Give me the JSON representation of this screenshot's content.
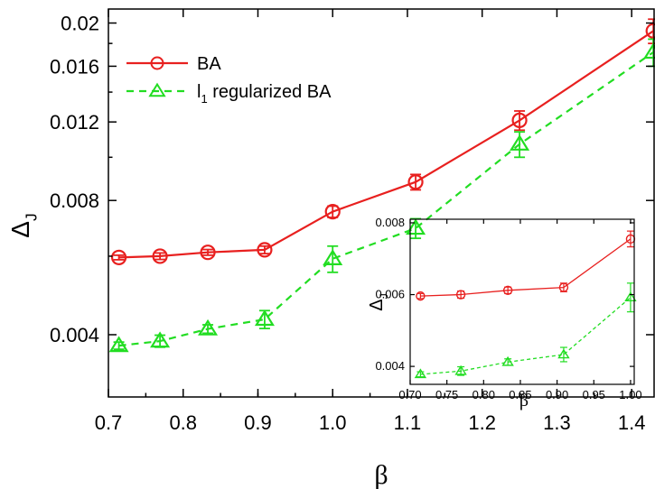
{
  "chart_data": [
    {
      "type": "line",
      "xlabel": "β",
      "ylabel": "Δ",
      "ylabel_subscript": "J",
      "y_scale": "log",
      "xlim": [
        0.7,
        1.43
      ],
      "ylim": [
        0.0029,
        0.0215
      ],
      "x_ticks": [
        0.7,
        0.8,
        0.9,
        1.0,
        1.1,
        1.2,
        1.3,
        1.4
      ],
      "x_tick_labels": [
        "0.7",
        "0.8",
        "0.9",
        "1.0",
        "1.1",
        "1.2",
        "1.3",
        "1.4"
      ],
      "y_ticks": [
        0.004,
        0.008,
        0.012,
        0.016,
        0.02
      ],
      "y_tick_labels": [
        "0.004",
        "0.008",
        "0.012",
        "0.016",
        "0.02"
      ],
      "legend_position": "top-left",
      "grid": false,
      "series": [
        {
          "name": "BA",
          "color": "#e8201f",
          "line_style": "solid",
          "marker": "circle",
          "x": [
            0.714,
            0.769,
            0.833,
            0.909,
            1.0,
            1.111,
            1.25,
            1.429
          ],
          "y": [
            0.00596,
            0.006,
            0.00612,
            0.0062,
            0.00755,
            0.0088,
            0.0121,
            0.0192
          ],
          "err": [
            7e-05,
            0.0001,
            9e-05,
            0.00012,
            0.00022,
            0.00035,
            0.0006,
            0.0012
          ]
        },
        {
          "name": "l",
          "name_subscript": "1",
          "name_suffix": " regularized BA",
          "color": "#22dd22",
          "line_style": "dashed",
          "marker": "triangle",
          "x": [
            0.714,
            0.769,
            0.833,
            0.909,
            1.0,
            1.111,
            1.25,
            1.429
          ],
          "y": [
            0.00378,
            0.00387,
            0.00412,
            0.00433,
            0.00592,
            0.00693,
            0.0107,
            0.0172
          ],
          "err": [
            7e-05,
            0.00012,
            9e-05,
            0.0002,
            0.0004,
            0.00035,
            0.0007,
            0.0012
          ]
        }
      ]
    },
    {
      "type": "line",
      "xlabel": "β",
      "ylabel": "Δ",
      "ylabel_subscript": "J",
      "y_scale": "linear",
      "xlim": [
        0.7,
        1.005
      ],
      "ylim": [
        0.0035,
        0.0081
      ],
      "x_ticks": [
        0.7,
        0.75,
        0.8,
        0.85,
        0.9,
        0.95,
        1.0
      ],
      "x_tick_labels": [
        "0.70",
        "0.75",
        "0.80",
        "0.85",
        "0.90",
        "0.95",
        "1.00"
      ],
      "y_ticks": [
        0.004,
        0.006,
        0.008
      ],
      "y_tick_labels": [
        "0.004",
        "0.006",
        "0.008"
      ],
      "grid": false,
      "series": [
        {
          "color": "#e8201f",
          "line_style": "solid",
          "marker": "circle",
          "x": [
            0.714,
            0.769,
            0.833,
            0.909,
            1.0
          ],
          "y": [
            0.00596,
            0.006,
            0.00612,
            0.0062,
            0.00755
          ],
          "err": [
            7e-05,
            0.0001,
            9e-05,
            0.00012,
            0.00022
          ]
        },
        {
          "color": "#22dd22",
          "line_style": "dashed",
          "marker": "triangle",
          "x": [
            0.714,
            0.769,
            0.833,
            0.909,
            1.0
          ],
          "y": [
            0.00378,
            0.00387,
            0.00412,
            0.00433,
            0.00592
          ],
          "err": [
            7e-05,
            0.00012,
            9e-05,
            0.0002,
            0.0004
          ]
        }
      ]
    }
  ]
}
